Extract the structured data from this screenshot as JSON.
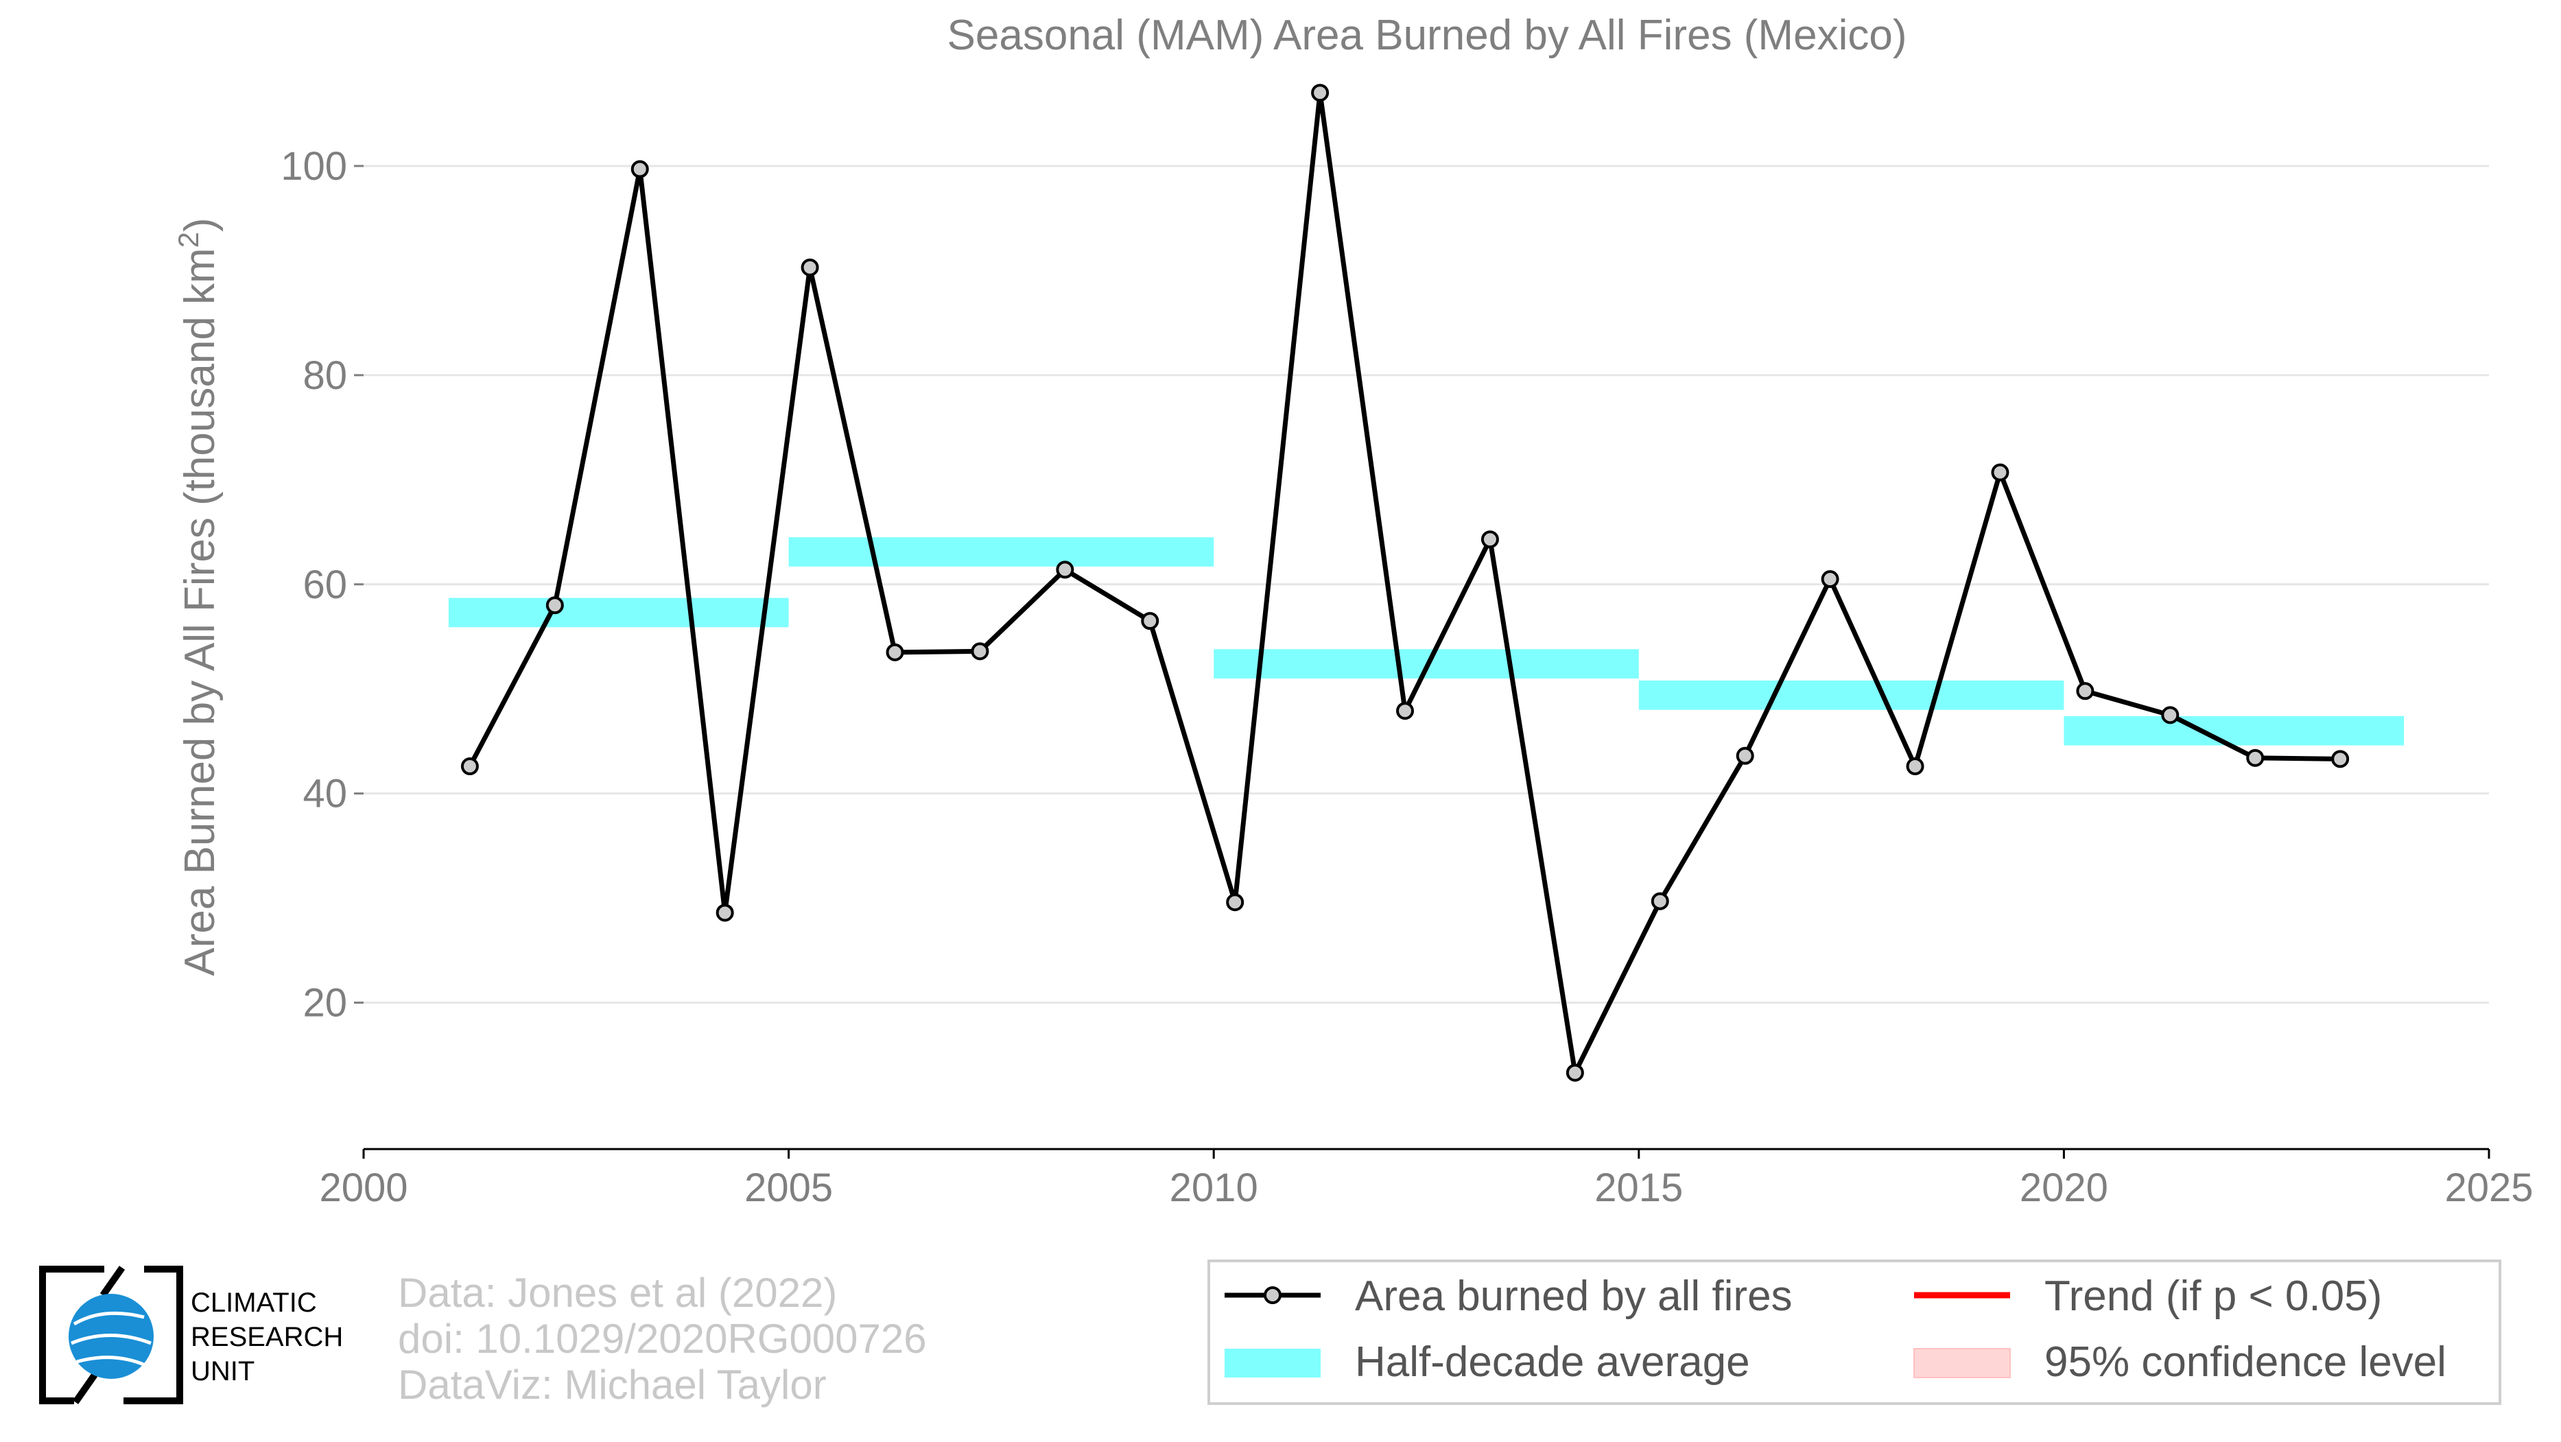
{
  "chart_data": {
    "type": "line",
    "title": "Seasonal (MAM) Area Burned by All Fires (Mexico)",
    "ylabel": "Area Burned by All Fires (thousand km",
    "ylabel_sup": "2",
    "ylabel_close": ")",
    "xlabel": "",
    "xlim": [
      2000,
      2025
    ],
    "ylim": [
      6,
      108
    ],
    "x_ticks": [
      2000,
      2005,
      2010,
      2015,
      2020,
      2025
    ],
    "y_ticks": [
      20,
      40,
      60,
      80,
      100
    ],
    "grid": "horizontal",
    "series": [
      {
        "name": "Area burned by all fires",
        "color": "#000000",
        "marker_fill": "#cccccc",
        "x": [
          2001.25,
          2002.25,
          2003.25,
          2004.25,
          2005.25,
          2006.25,
          2007.25,
          2008.25,
          2009.25,
          2010.25,
          2011.25,
          2012.25,
          2013.25,
          2014.25,
          2015.25,
          2016.25,
          2017.25,
          2018.25,
          2019.25,
          2020.25,
          2021.25,
          2022.25,
          2023.25
        ],
        "y": [
          42.6,
          58.0,
          99.7,
          28.6,
          90.3,
          53.5,
          53.6,
          61.4,
          56.5,
          29.6,
          107.0,
          47.9,
          64.3,
          13.3,
          29.7,
          43.6,
          60.5,
          42.6,
          70.7,
          49.8,
          47.5,
          43.4,
          43.3
        ]
      }
    ],
    "half_decade_average": {
      "name": "Half-decade average",
      "color": "#80ffff",
      "segments": [
        {
          "x0": 2001,
          "x1": 2005,
          "y": 57.3
        },
        {
          "x0": 2005,
          "x1": 2010,
          "y": 63.1
        },
        {
          "x0": 2010,
          "x1": 2015,
          "y": 52.4
        },
        {
          "x0": 2015,
          "x1": 2020,
          "y": 49.4
        },
        {
          "x0": 2020,
          "x1": 2024,
          "y": 46.0
        }
      ]
    },
    "legend": {
      "position": "bottom-right",
      "items": [
        {
          "label": "Area burned by all fires",
          "kind": "line-marker",
          "color": "#000000"
        },
        {
          "label": "Trend (if p < 0.05)",
          "kind": "line",
          "color": "#ff0000"
        },
        {
          "label": "Half-decade average",
          "kind": "band",
          "color": "#80ffff"
        },
        {
          "label": "95% confidence level",
          "kind": "band",
          "color": "#ffd6d6"
        }
      ]
    }
  },
  "credits": {
    "line1": "Data: Jones et al (2022)",
    "line2": "doi: 10.1029/2020RG000726",
    "line3": "DataViz: Michael Taylor"
  },
  "logo": {
    "line1": "CLIMATIC",
    "line2": "RESEARCH",
    "line3": "UNIT",
    "icon": "globe-icon"
  }
}
